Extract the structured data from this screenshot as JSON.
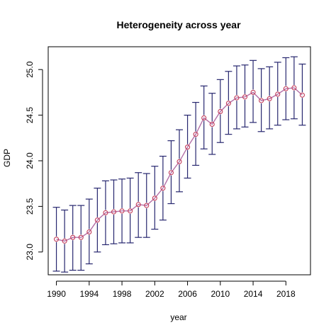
{
  "chart_data": {
    "type": "line",
    "title": "Heterogeneity across year",
    "xlabel": "year",
    "ylabel": "GDP",
    "xlim": [
      1989,
      2021
    ],
    "ylim": [
      22.75,
      25.25
    ],
    "x_ticks": [
      1990,
      1994,
      1998,
      2002,
      2006,
      2010,
      2014,
      2018
    ],
    "y_ticks": [
      23.0,
      23.5,
      24.0,
      24.5,
      25.0
    ],
    "y_tick_labels": [
      "23.0",
      "23.5",
      "24.0",
      "24.5",
      "25.0"
    ],
    "grid": false,
    "colors": {
      "line": "#b36fa6",
      "point": "#c23c5a",
      "errorbar": "#27276f",
      "axis": "#000000"
    },
    "series": [
      {
        "x": [
          1990,
          1991,
          1992,
          1993,
          1994,
          1995,
          1996,
          1997,
          1998,
          1999,
          2000,
          2001,
          2002,
          2003,
          2004,
          2005,
          2006,
          2007,
          2008,
          2009,
          2010,
          2011,
          2012,
          2013,
          2014,
          2015,
          2016,
          2017,
          2018,
          2019,
          2020
        ],
        "mean": [
          23.14,
          23.12,
          23.16,
          23.16,
          23.22,
          23.35,
          23.43,
          23.44,
          23.45,
          23.45,
          23.52,
          23.51,
          23.59,
          23.7,
          23.87,
          23.99,
          24.15,
          24.29,
          24.47,
          24.4,
          24.54,
          24.63,
          24.69,
          24.7,
          24.75,
          24.66,
          24.68,
          24.73,
          24.79,
          24.8,
          24.72
        ],
        "lower": [
          22.79,
          22.78,
          22.8,
          22.8,
          22.87,
          23.0,
          23.08,
          23.09,
          23.1,
          23.1,
          23.16,
          23.16,
          23.25,
          23.35,
          23.53,
          23.66,
          23.81,
          23.95,
          24.13,
          24.07,
          24.2,
          24.29,
          24.35,
          24.37,
          24.42,
          24.32,
          24.35,
          24.39,
          24.45,
          24.46,
          24.39
        ],
        "upper": [
          23.49,
          23.46,
          23.51,
          23.51,
          23.58,
          23.7,
          23.78,
          23.79,
          23.8,
          23.81,
          23.87,
          23.86,
          23.94,
          24.05,
          24.22,
          24.34,
          24.5,
          24.64,
          24.82,
          24.74,
          24.89,
          24.98,
          25.04,
          25.05,
          25.1,
          25.01,
          25.03,
          25.08,
          25.13,
          25.14,
          25.06
        ]
      }
    ]
  }
}
